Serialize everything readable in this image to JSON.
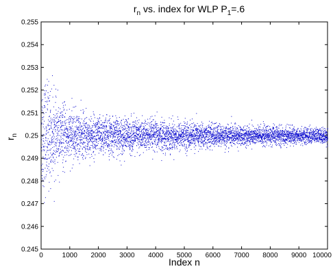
{
  "chart_data": {
    "type": "scatter",
    "title": {
      "pre": "r",
      "pre_sub": "n",
      "mid": " vs. index for WLP P",
      "mid_sub": "1",
      "post": "=.6"
    },
    "xlabel": "Index n",
    "ylabel": {
      "base": "r",
      "sub": "n"
    },
    "xlim": [
      0,
      10000
    ],
    "ylim": [
      0.245,
      0.255
    ],
    "xticks": [
      0,
      1000,
      2000,
      3000,
      4000,
      5000,
      6000,
      7000,
      8000,
      9000,
      10000
    ],
    "xtick_labels": [
      "0",
      "1000",
      "2000",
      "3000",
      "4000",
      "5000",
      "6000",
      "7000",
      "8000",
      "9000",
      "10000"
    ],
    "yticks": [
      0.245,
      0.246,
      0.247,
      0.248,
      0.249,
      0.25,
      0.251,
      0.252,
      0.253,
      0.254,
      0.255
    ],
    "ytick_labels": [
      "0.245",
      "0.246",
      "0.247",
      "0.248",
      "0.249",
      "0.25",
      "0.251",
      "0.252",
      "0.253",
      "0.254",
      "0.255"
    ],
    "grid": false,
    "marker_color": "#0000cc",
    "series": [
      {
        "description_of_distribution": "",
        "center": 0.25,
        "points_approx": 10000,
        "spread_envelope": [
          [
            0,
            0.003
          ],
          [
            200,
            0.0028
          ],
          [
            500,
            0.0018
          ],
          [
            1000,
            0.0013
          ],
          [
            2000,
            0.001
          ],
          [
            3000,
            0.0009
          ],
          [
            4000,
            0.0008
          ],
          [
            5000,
            0.0007
          ],
          [
            6000,
            0.0006
          ],
          [
            7000,
            0.0005
          ],
          [
            8000,
            0.0005
          ],
          [
            9000,
            0.0004
          ],
          [
            10000,
            0.0004
          ]
        ]
      }
    ]
  }
}
